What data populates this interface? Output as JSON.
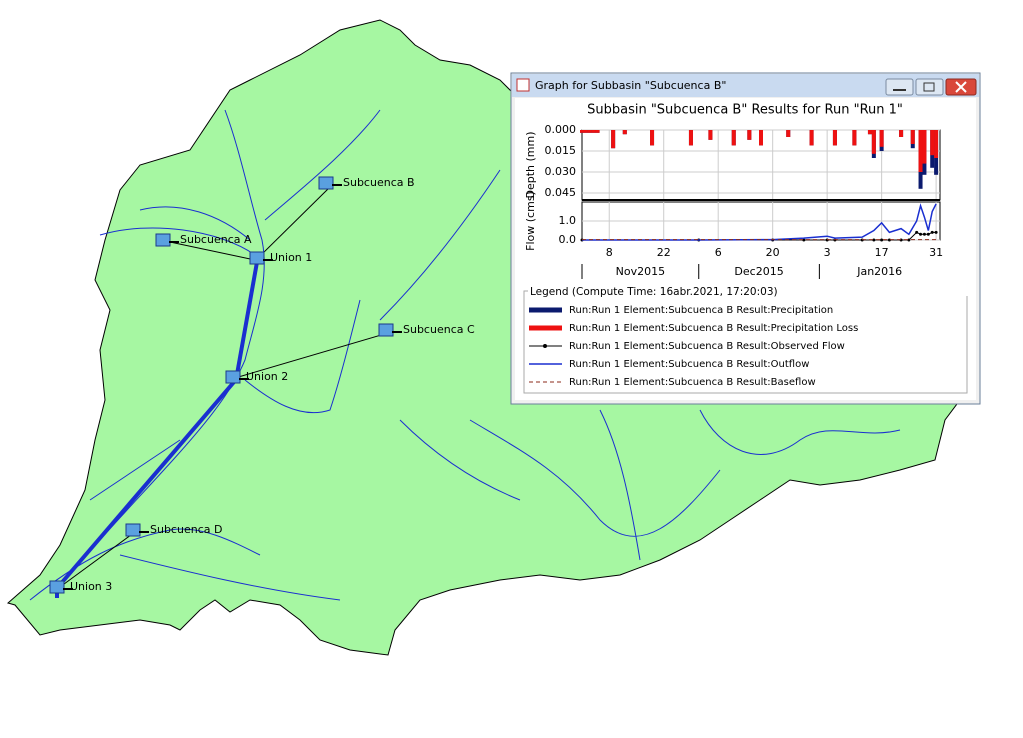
{
  "map": {
    "elements": [
      {
        "label": "Subcuenca A"
      },
      {
        "label": "Union 1"
      },
      {
        "label": "Subcuenca B"
      },
      {
        "label": "Subcuenca C"
      },
      {
        "label": "Union 2"
      },
      {
        "label": "Subcuenca D"
      },
      {
        "label": "Union 3"
      }
    ]
  },
  "window": {
    "title": "Graph for Subbasin \"Subcuenca B\""
  },
  "graph": {
    "title": "Subbasin \"Subcuenca B\" Results for Run \"Run 1\"",
    "xlim": [
      "2015-11-01",
      "2016-02-01"
    ],
    "xticks": [
      {
        "value": "2015-11-08",
        "label": "8"
      },
      {
        "value": "2015-11-22",
        "label": "22"
      },
      {
        "value": "2015-12-06",
        "label": "6"
      },
      {
        "value": "2015-12-20",
        "label": "20"
      },
      {
        "value": "2016-01-03",
        "label": "3"
      },
      {
        "value": "2016-01-17",
        "label": "17"
      },
      {
        "value": "2016-01-31",
        "label": "31"
      }
    ],
    "months": [
      {
        "value": "2015-11-01",
        "label": "Nov2015"
      },
      {
        "value": "2015-12-01",
        "label": "Dec2015"
      },
      {
        "value": "2016-01-01",
        "label": "Jan2016"
      }
    ],
    "depth": {
      "ylabel": "Depth (mm)",
      "ylim": [
        0,
        0.05
      ],
      "inverted": true,
      "yticks": [
        {
          "value": 0,
          "label": "0.000"
        },
        {
          "value": 0.015,
          "label": "0.015"
        },
        {
          "value": 0.03,
          "label": "0.030"
        },
        {
          "value": 0.045,
          "label": "0.045"
        }
      ],
      "x": [
        "2015-11-01",
        "2015-11-02",
        "2015-11-03",
        "2015-11-04",
        "2015-11-05",
        "2015-11-09",
        "2015-11-12",
        "2015-11-19",
        "2015-11-29",
        "2015-12-04",
        "2015-12-10",
        "2015-12-14",
        "2015-12-17",
        "2015-12-24",
        "2015-12-30",
        "2016-01-05",
        "2016-01-10",
        "2016-01-14",
        "2016-01-15",
        "2016-01-17",
        "2016-01-22",
        "2016-01-25",
        "2016-01-27",
        "2016-01-28",
        "2016-01-30",
        "2016-01-31"
      ],
      "series": [
        {
          "name": "Run:Run 1 Element:Subcuenca B Result:Precipitation",
          "color": "#0b1a6e",
          "values": [
            0.002,
            0.002,
            0.002,
            0.002,
            0.002,
            0.013,
            0.003,
            0.011,
            0.011,
            0.007,
            0.011,
            0.007,
            0.011,
            0.005,
            0.011,
            0.011,
            0.011,
            0.003,
            0.02,
            0.015,
            0.005,
            0.013,
            0.042,
            0.032,
            0.027,
            0.032
          ]
        },
        {
          "name": "Run:Run 1 Element:Subcuenca B Result:Precipitation Loss",
          "color": "#ee1111",
          "values": [
            0.002,
            0.002,
            0.002,
            0.002,
            0.002,
            0.013,
            0.003,
            0.011,
            0.011,
            0.007,
            0.011,
            0.007,
            0.011,
            0.005,
            0.011,
            0.011,
            0.011,
            0.003,
            0.017,
            0.012,
            0.005,
            0.01,
            0.03,
            0.024,
            0.018,
            0.02
          ]
        }
      ]
    },
    "flow": {
      "ylabel": "Flow (cms)",
      "ylim": [
        0,
        2
      ],
      "yticks": [
        {
          "value": 0,
          "label": "0.0"
        },
        {
          "value": 1,
          "label": "1.0"
        }
      ],
      "x": [
        "2015-11-01",
        "2015-12-01",
        "2015-12-20",
        "2015-12-28",
        "2016-01-03",
        "2016-01-05",
        "2016-01-12",
        "2016-01-15",
        "2016-01-17",
        "2016-01-19",
        "2016-01-22",
        "2016-01-24",
        "2016-01-26",
        "2016-01-27",
        "2016-01-28",
        "2016-01-29",
        "2016-01-30",
        "2016-01-31"
      ],
      "series": [
        {
          "name": "Run:Run 1 Element:Subcuenca B Result:Observed Flow",
          "color": "#000000",
          "style": "marker",
          "values": [
            0,
            0,
            0,
            0,
            0,
            0,
            0,
            0,
            0,
            0,
            0,
            0,
            0.4,
            0.3,
            0.3,
            0.3,
            0.4,
            0.4
          ]
        },
        {
          "name": "Run:Run 1 Element:Subcuenca B Result:Outflow",
          "color": "#1a2fd0",
          "style": "line",
          "values": [
            0,
            0,
            0.02,
            0.1,
            0.2,
            0.1,
            0.15,
            0.5,
            0.9,
            0.4,
            0.6,
            0.3,
            1,
            1.8,
            1.2,
            0.5,
            1.5,
            1.9
          ]
        },
        {
          "name": "Run:Run 1 Element:Subcuenca B Result:Baseflow",
          "color": "#8b2a1a",
          "style": "dash",
          "values": [
            0.02,
            0.02,
            0.02,
            0.02,
            0.02,
            0.02,
            0.02,
            0.02,
            0.02,
            0.02,
            0.02,
            0.02,
            0.02,
            0.02,
            0.02,
            0.02,
            0.02,
            0.02
          ]
        }
      ]
    },
    "legend_title": "Legend (Compute Time: 16abr.2021, 17:20:03)"
  }
}
